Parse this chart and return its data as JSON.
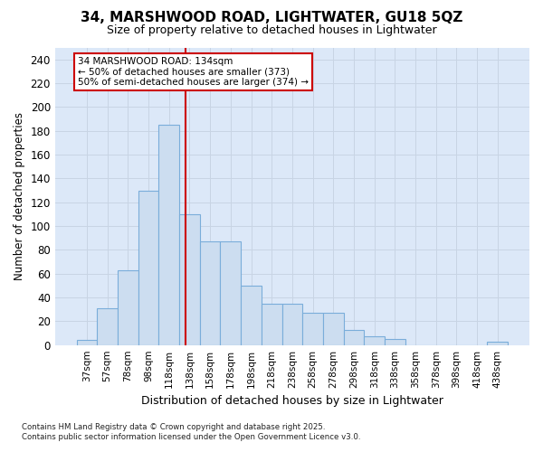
{
  "title_line1": "34, MARSHWOOD ROAD, LIGHTWATER, GU18 5QZ",
  "title_line2": "Size of property relative to detached houses in Lightwater",
  "xlabel": "Distribution of detached houses by size in Lightwater",
  "ylabel": "Number of detached properties",
  "bar_labels": [
    "37sqm",
    "57sqm",
    "78sqm",
    "98sqm",
    "118sqm",
    "138sqm",
    "158sqm",
    "178sqm",
    "198sqm",
    "218sqm",
    "238sqm",
    "258sqm",
    "278sqm",
    "298sqm",
    "318sqm",
    "338sqm",
    "358sqm",
    "378sqm",
    "398sqm",
    "418sqm",
    "438sqm"
  ],
  "bar_values": [
    4,
    31,
    63,
    130,
    185,
    110,
    87,
    87,
    50,
    35,
    35,
    27,
    27,
    13,
    7,
    5,
    0,
    0,
    0,
    0,
    3
  ],
  "bar_color": "#ccddf0",
  "bar_edge_color": "#7aadda",
  "bar_width": 1.0,
  "vline_x": 4.82,
  "vline_color": "#cc0000",
  "ylim": [
    0,
    250
  ],
  "yticks": [
    0,
    20,
    40,
    60,
    80,
    100,
    120,
    140,
    160,
    180,
    200,
    220,
    240
  ],
  "annotation_title": "34 MARSHWOOD ROAD: 134sqm",
  "annotation_line1": "← 50% of detached houses are smaller (373)",
  "annotation_line2": "50% of semi-detached houses are larger (374) →",
  "annotation_box_color": "#ffffff",
  "annotation_box_edge": "#cc0000",
  "grid_color": "#c8d4e4",
  "bg_color": "#dce8f8",
  "fig_bg_color": "#ffffff",
  "footer_line1": "Contains HM Land Registry data © Crown copyright and database right 2025.",
  "footer_line2": "Contains public sector information licensed under the Open Government Licence v3.0."
}
